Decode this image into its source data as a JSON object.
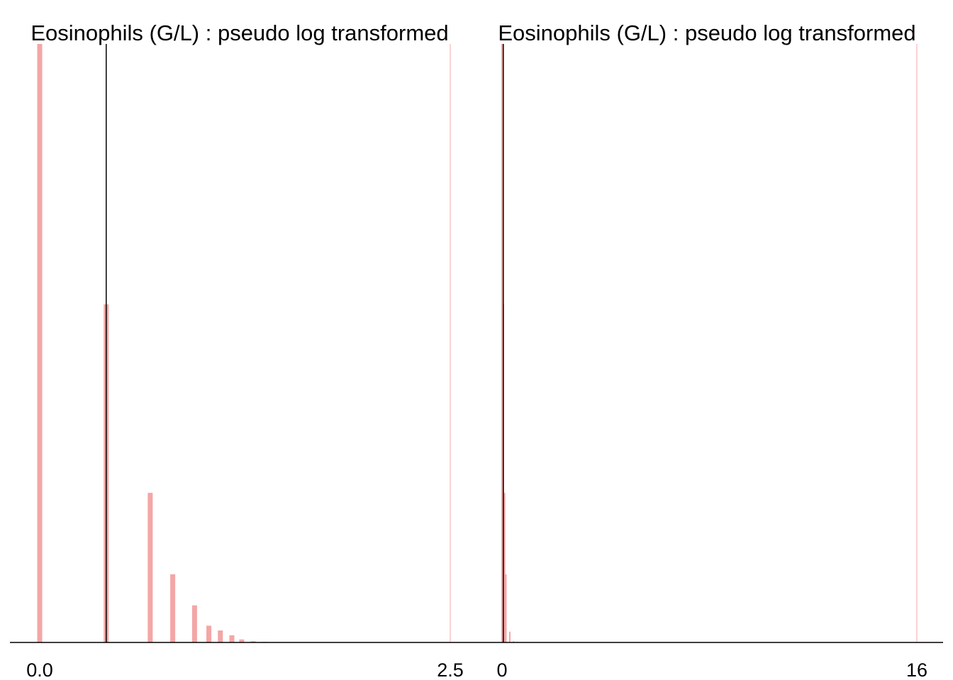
{
  "colors": {
    "bar": "#f4a6a6",
    "limit_line": "#f9c6c6",
    "marker_line": "#000000",
    "axis": "#000000",
    "background": "#ffffff"
  },
  "chart_data": [
    {
      "type": "bar",
      "title": "Eosinophils (G/L) : pseudo log transformed",
      "xlabel": "",
      "ylabel": "",
      "xlim": [
        0.0,
        2.5
      ],
      "ylim": [
        0,
        1
      ],
      "x_ticks": [
        "0.0",
        "2.5"
      ],
      "tick_values": [
        0.0,
        2.5
      ],
      "grid": false,
      "y_axis_shown": false,
      "bars": [
        {
          "x": 0.0,
          "height": 1.0
        },
        {
          "x": 0.405,
          "height": 0.565
        },
        {
          "x": 0.673,
          "height": 0.25
        },
        {
          "x": 0.81,
          "height": 0.114
        },
        {
          "x": 0.943,
          "height": 0.062
        },
        {
          "x": 1.03,
          "height": 0.028
        },
        {
          "x": 1.1,
          "height": 0.02
        },
        {
          "x": 1.17,
          "height": 0.012
        },
        {
          "x": 1.23,
          "height": 0.005
        },
        {
          "x": 1.3,
          "height": 0.002
        },
        {
          "x": 1.37,
          "height": 0.001
        }
      ],
      "marker_lines": [
        {
          "x": 0.405
        }
      ],
      "limit_lines": [
        {
          "x": 2.5
        }
      ]
    },
    {
      "type": "bar",
      "title": "Eosinophils (G/L) : pseudo log transformed",
      "xlabel": "",
      "ylabel": "",
      "xlim": [
        0,
        16
      ],
      "ylim": [
        0,
        1
      ],
      "x_ticks": [
        "0",
        "16"
      ],
      "tick_values": [
        0,
        16
      ],
      "grid": false,
      "y_axis_shown": false,
      "bars": [
        {
          "x": 0.0,
          "height": 1.0
        },
        {
          "x": 0.05,
          "height": 0.565
        },
        {
          "x": 0.1,
          "height": 0.25
        },
        {
          "x": 0.15,
          "height": 0.114
        },
        {
          "x": 0.3,
          "height": 0.018
        },
        {
          "x": 0.45,
          "height": 0.002
        },
        {
          "x": 0.6,
          "height": 0.001
        }
      ],
      "marker_lines": [
        {
          "x": 0.05
        }
      ],
      "limit_lines": [
        {
          "x": 16
        }
      ]
    }
  ]
}
